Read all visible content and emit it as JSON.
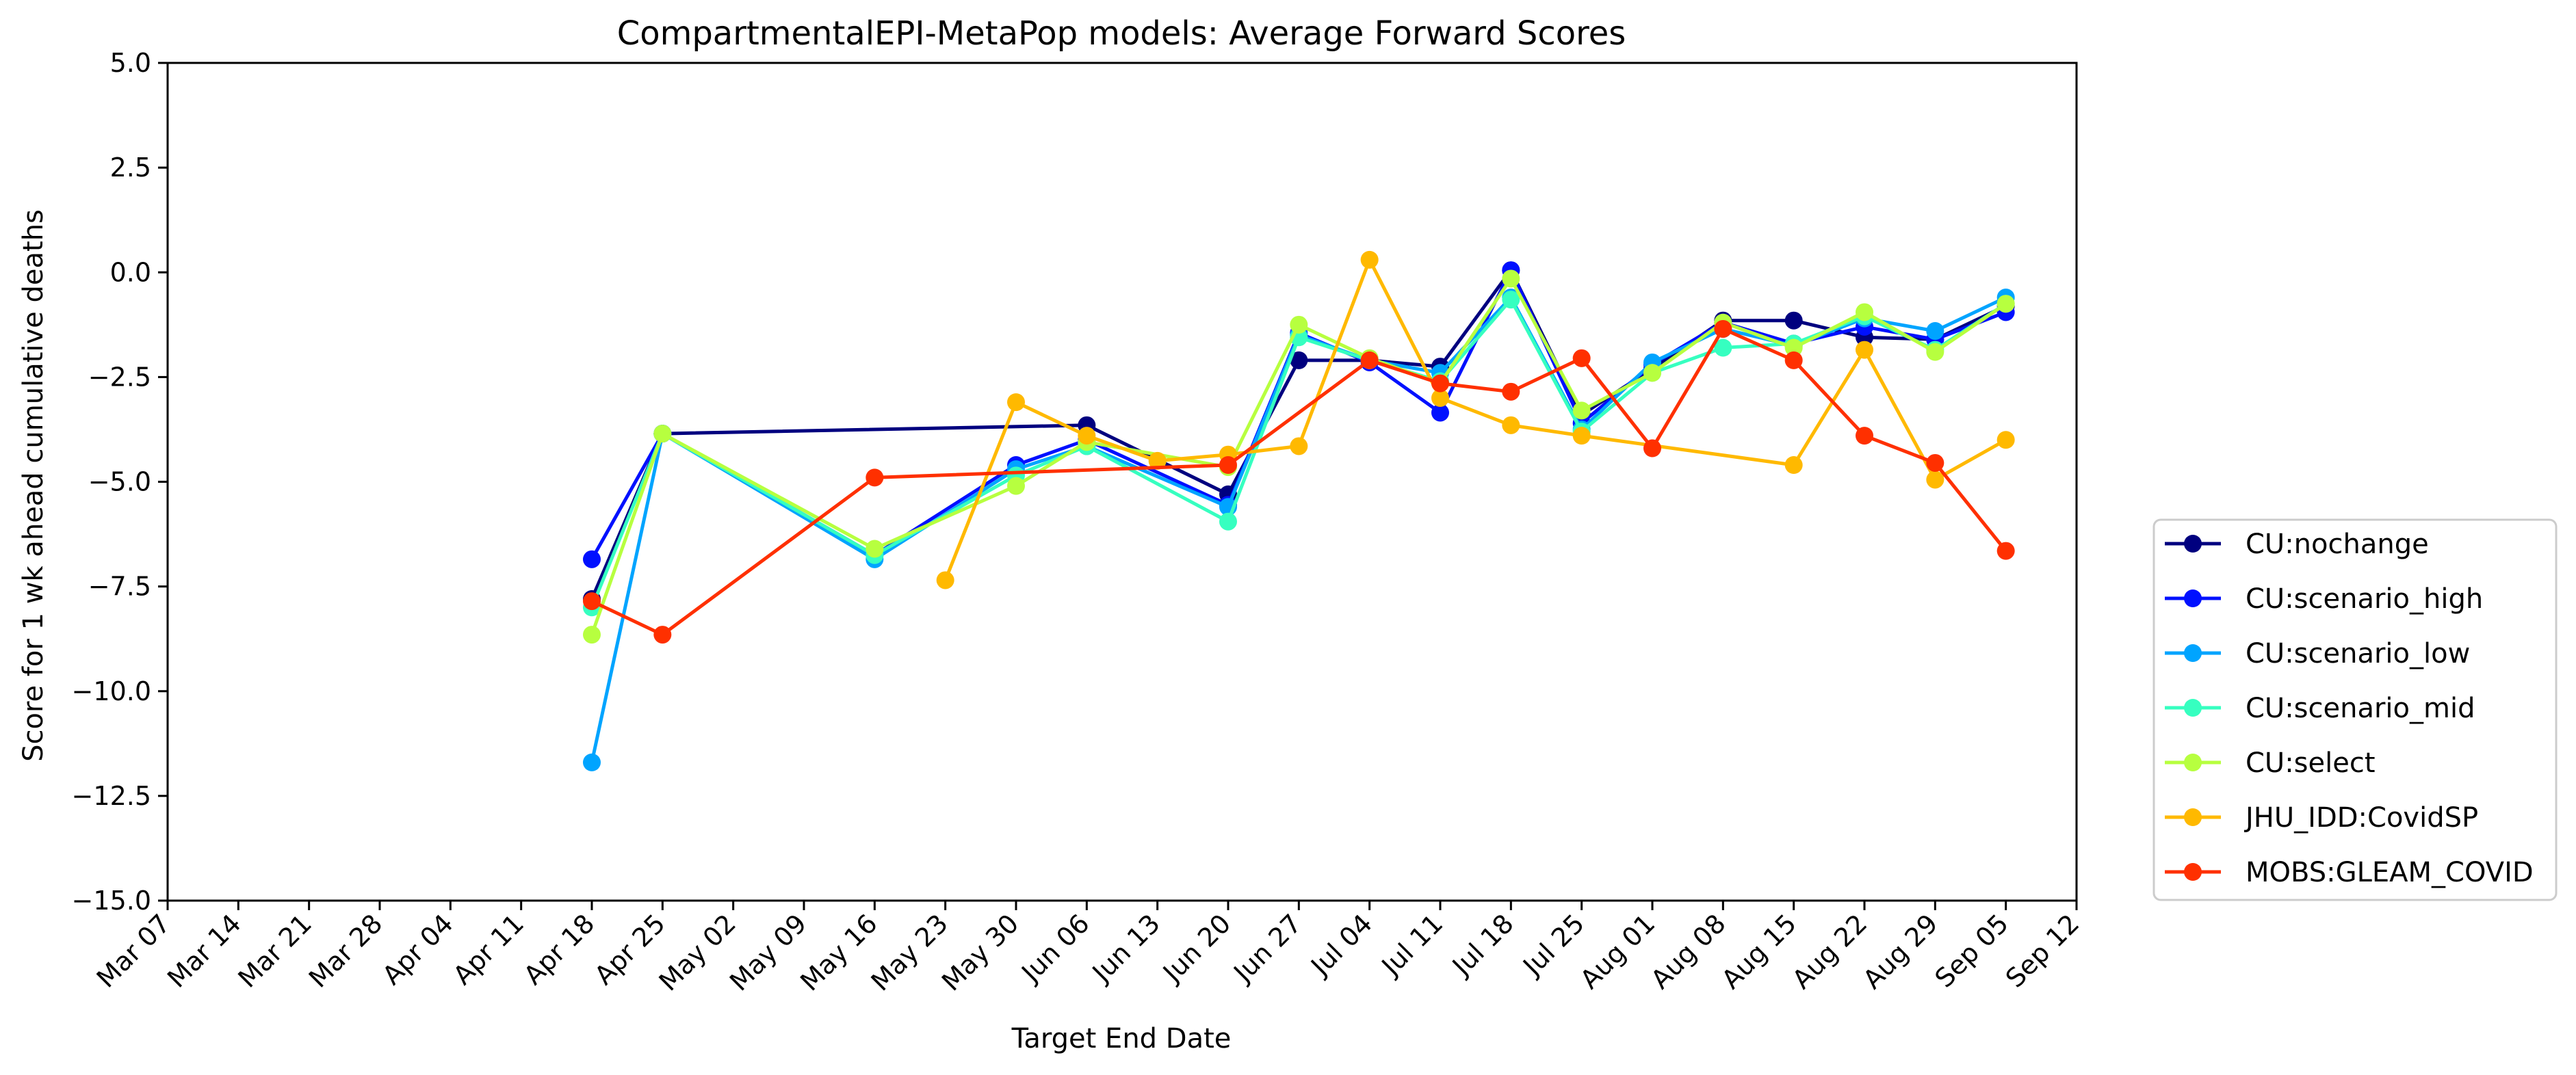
{
  "chart_data": {
    "type": "line",
    "title": "CompartmentalEPI-MetaPop models: Average Forward Scores",
    "xlabel": "Target End Date",
    "ylabel": "Score for 1 wk ahead cumulative deaths",
    "ylim": [
      -15.0,
      5.0
    ],
    "yticks": [
      5.0,
      2.5,
      0.0,
      -2.5,
      -5.0,
      -7.5,
      -10.0,
      -12.5,
      -15.0
    ],
    "ytick_labels": [
      "5.0",
      "2.5",
      "0.0",
      "−2.5",
      "−5.0",
      "−7.5",
      "−10.0",
      "−12.5",
      "−15.0"
    ],
    "xlim": [
      "Mar 07",
      "Sep 12"
    ],
    "x_tick_labels": [
      "Mar 07",
      "Mar 14",
      "Mar 21",
      "Mar 28",
      "Apr 04",
      "Apr 11",
      "Apr 18",
      "Apr 25",
      "May 02",
      "May 09",
      "May 16",
      "May 23",
      "May 30",
      "Jun 06",
      "Jun 13",
      "Jun 20",
      "Jun 27",
      "Jul 04",
      "Jul 11",
      "Jul 18",
      "Jul 25",
      "Aug 01",
      "Aug 08",
      "Aug 15",
      "Aug 22",
      "Aug 29",
      "Sep 05",
      "Sep 12"
    ],
    "grid": false,
    "legend_position": "right",
    "series": [
      {
        "name": "CU:nochange",
        "color": "#00007f",
        "points": [
          {
            "x": "Apr 18",
            "y": -7.8
          },
          {
            "x": "Apr 25",
            "y": -3.85
          },
          {
            "x": "Jun 06",
            "y": -3.65
          },
          {
            "x": "Jun 20",
            "y": -5.3
          },
          {
            "x": "Jun 27",
            "y": -2.1
          },
          {
            "x": "Jul 04",
            "y": -2.1
          },
          {
            "x": "Jul 11",
            "y": -2.25
          },
          {
            "x": "Jul 18",
            "y": 0.05
          },
          {
            "x": "Jul 25",
            "y": -3.4
          },
          {
            "x": "Aug 01",
            "y": -2.3
          },
          {
            "x": "Aug 08",
            "y": -1.15
          },
          {
            "x": "Aug 15",
            "y": -1.15
          },
          {
            "x": "Aug 22",
            "y": -1.55
          },
          {
            "x": "Aug 29",
            "y": -1.6
          },
          {
            "x": "Sep 05",
            "y": -0.8
          }
        ]
      },
      {
        "name": "CU:scenario_high",
        "color": "#0010ff",
        "points": [
          {
            "x": "Apr 18",
            "y": -6.85
          },
          {
            "x": "Apr 25",
            "y": -3.85
          },
          {
            "x": "May 16",
            "y": -6.75
          },
          {
            "x": "May 30",
            "y": -4.6
          },
          {
            "x": "Jun 06",
            "y": -4.0
          },
          {
            "x": "Jun 20",
            "y": -5.55
          },
          {
            "x": "Jun 27",
            "y": -1.45
          },
          {
            "x": "Jul 04",
            "y": -2.15
          },
          {
            "x": "Jul 11",
            "y": -3.35
          },
          {
            "x": "Jul 18",
            "y": 0.05
          },
          {
            "x": "Jul 25",
            "y": -3.6
          },
          {
            "x": "Aug 01",
            "y": -2.2
          },
          {
            "x": "Aug 08",
            "y": -1.2
          },
          {
            "x": "Aug 15",
            "y": -1.7
          },
          {
            "x": "Aug 22",
            "y": -1.3
          },
          {
            "x": "Aug 29",
            "y": -1.6
          },
          {
            "x": "Sep 05",
            "y": -0.95
          }
        ]
      },
      {
        "name": "CU:scenario_low",
        "color": "#00a4ff",
        "points": [
          {
            "x": "Apr 18",
            "y": -11.7
          },
          {
            "x": "Apr 25",
            "y": -3.85
          },
          {
            "x": "May 16",
            "y": -6.85
          },
          {
            "x": "May 30",
            "y": -4.7
          },
          {
            "x": "Jun 06",
            "y": -4.15
          },
          {
            "x": "Jun 20",
            "y": -5.6
          },
          {
            "x": "Jun 27",
            "y": -1.5
          },
          {
            "x": "Jul 04",
            "y": -2.1
          },
          {
            "x": "Jul 11",
            "y": -2.4
          },
          {
            "x": "Jul 18",
            "y": -0.6
          },
          {
            "x": "Jul 25",
            "y": -3.75
          },
          {
            "x": "Aug 01",
            "y": -2.15
          },
          {
            "x": "Aug 08",
            "y": -1.35
          },
          {
            "x": "Aug 15",
            "y": -1.75
          },
          {
            "x": "Aug 22",
            "y": -1.1
          },
          {
            "x": "Aug 29",
            "y": -1.4
          },
          {
            "x": "Sep 05",
            "y": -0.6
          }
        ]
      },
      {
        "name": "CU:scenario_mid",
        "color": "#36ffc0",
        "points": [
          {
            "x": "Apr 18",
            "y": -8.0
          },
          {
            "x": "Apr 25",
            "y": -3.85
          },
          {
            "x": "May 16",
            "y": -6.75
          },
          {
            "x": "May 30",
            "y": -4.85
          },
          {
            "x": "Jun 06",
            "y": -4.15
          },
          {
            "x": "Jun 20",
            "y": -5.95
          },
          {
            "x": "Jun 27",
            "y": -1.55
          },
          {
            "x": "Jul 04",
            "y": -2.1
          },
          {
            "x": "Jul 11",
            "y": -2.6
          },
          {
            "x": "Jul 18",
            "y": -0.65
          },
          {
            "x": "Jul 25",
            "y": -3.8
          },
          {
            "x": "Aug 01",
            "y": -2.4
          },
          {
            "x": "Aug 08",
            "y": -1.8
          },
          {
            "x": "Aug 15",
            "y": -1.7
          },
          {
            "x": "Aug 22",
            "y": -1.05
          },
          {
            "x": "Aug 29",
            "y": -1.85
          },
          {
            "x": "Sep 05",
            "y": -0.75
          }
        ]
      },
      {
        "name": "CU:select",
        "color": "#b7ff3f",
        "points": [
          {
            "x": "Apr 18",
            "y": -8.65
          },
          {
            "x": "Apr 25",
            "y": -3.85
          },
          {
            "x": "May 16",
            "y": -6.6
          },
          {
            "x": "May 30",
            "y": -5.1
          },
          {
            "x": "Jun 06",
            "y": -4.05
          },
          {
            "x": "Jun 20",
            "y": -4.65
          },
          {
            "x": "Jun 27",
            "y": -1.25
          },
          {
            "x": "Jul 04",
            "y": -2.05
          },
          {
            "x": "Jul 11",
            "y": -2.65
          },
          {
            "x": "Jul 18",
            "y": -0.15
          },
          {
            "x": "Jul 25",
            "y": -3.3
          },
          {
            "x": "Aug 01",
            "y": -2.4
          },
          {
            "x": "Aug 08",
            "y": -1.2
          },
          {
            "x": "Aug 15",
            "y": -1.8
          },
          {
            "x": "Aug 22",
            "y": -0.95
          },
          {
            "x": "Aug 29",
            "y": -1.9
          },
          {
            "x": "Sep 05",
            "y": -0.75
          }
        ]
      },
      {
        "name": "JHU_IDD:CovidSP",
        "color": "#ffb900",
        "points": [
          {
            "x": "May 23",
            "y": -7.35
          },
          {
            "x": "May 30",
            "y": -3.1
          },
          {
            "x": "Jun 06",
            "y": -3.9
          },
          {
            "x": "Jun 13",
            "y": -4.5
          },
          {
            "x": "Jun 20",
            "y": -4.35
          },
          {
            "x": "Jun 27",
            "y": -4.15
          },
          {
            "x": "Jul 04",
            "y": 0.3
          },
          {
            "x": "Jul 11",
            "y": -3.0
          },
          {
            "x": "Jul 18",
            "y": -3.65
          },
          {
            "x": "Jul 25",
            "y": -3.9
          },
          {
            "x": "Aug 15",
            "y": -4.6
          },
          {
            "x": "Aug 22",
            "y": -1.85
          },
          {
            "x": "Aug 29",
            "y": -4.95
          },
          {
            "x": "Sep 05",
            "y": -4.0
          }
        ]
      },
      {
        "name": "MOBS:GLEAM_COVID",
        "color": "#ff3000",
        "points": [
          {
            "x": "Apr 18",
            "y": -7.85
          },
          {
            "x": "Apr 25",
            "y": -8.65
          },
          {
            "x": "May 16",
            "y": -4.9
          },
          {
            "x": "Jun 20",
            "y": -4.6
          },
          {
            "x": "Jul 04",
            "y": -2.1
          },
          {
            "x": "Jul 11",
            "y": -2.65
          },
          {
            "x": "Jul 18",
            "y": -2.85
          },
          {
            "x": "Jul 25",
            "y": -2.05
          },
          {
            "x": "Aug 01",
            "y": -4.2
          },
          {
            "x": "Aug 08",
            "y": -1.35
          },
          {
            "x": "Aug 15",
            "y": -2.1
          },
          {
            "x": "Aug 22",
            "y": -3.9
          },
          {
            "x": "Aug 29",
            "y": -4.55
          },
          {
            "x": "Sep 05",
            "y": -6.65
          }
        ]
      }
    ]
  }
}
